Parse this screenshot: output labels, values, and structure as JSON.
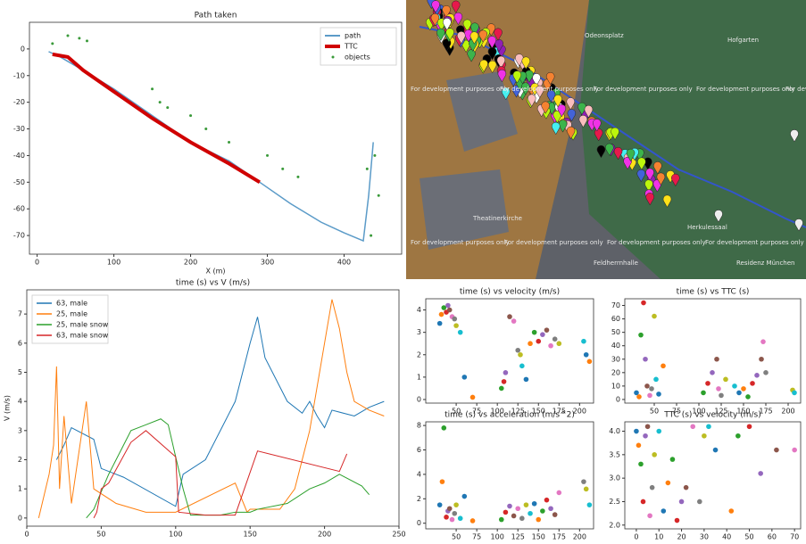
{
  "chart_data": [
    {
      "type": "line",
      "title": "Path taken",
      "x_label": "X (m)",
      "legend": "upper right",
      "xlim": [
        -10,
        475
      ],
      "xticks": [
        0,
        100,
        200,
        300,
        400
      ],
      "ylim": [
        -77,
        10
      ],
      "yticks": [
        0,
        -10,
        -20,
        -30,
        -40,
        -50,
        -60,
        -70
      ],
      "series": [
        {
          "name": "path",
          "color": "#5b9bc8",
          "mode": "line",
          "width": 1.5,
          "x": [
            15,
            30,
            60,
            100,
            150,
            200,
            250,
            290,
            330,
            370,
            400,
            425,
            432,
            438
          ],
          "values": [
            -1,
            -3,
            -8,
            -15,
            -25,
            -35,
            -42,
            -50,
            -58,
            -65,
            -69,
            -72,
            -55,
            -35
          ]
        },
        {
          "name": "TTC",
          "color": "#d00000",
          "mode": "line",
          "width": 4,
          "x": [
            20,
            40,
            60,
            100,
            150,
            200,
            250,
            290
          ],
          "values": [
            -2,
            -3,
            -8,
            -16,
            -26,
            -35,
            -43,
            -50
          ]
        },
        {
          "name": "objects",
          "color": "#3a9a3a",
          "mode": "scatter",
          "x": [
            20,
            40,
            55,
            65,
            150,
            160,
            170,
            200,
            220,
            250,
            300,
            320,
            340,
            430,
            440,
            445,
            435
          ],
          "values": [
            2,
            5,
            4,
            3,
            -15,
            -20,
            -22,
            -25,
            -30,
            -35,
            -40,
            -45,
            -48,
            -45,
            -40,
            -55,
            -70
          ]
        }
      ]
    },
    {
      "type": "line",
      "title": "time (s) vs V (m/s)",
      "y_label": "V (m/s)",
      "legend": "upper left",
      "xlim": [
        0,
        250
      ],
      "xticks": [
        0,
        50,
        100,
        150,
        200,
        250
      ],
      "ylim": [
        -0.28,
        7.83
      ],
      "yticks": [
        0,
        1,
        2,
        3,
        4,
        5,
        6,
        7
      ],
      "series": [
        {
          "name": "63, male",
          "color": "#1f77b4",
          "mode": "line",
          "width": 1,
          "x": [
            20,
            25,
            30,
            45,
            50,
            65,
            100,
            105,
            120,
            140,
            150,
            155,
            160,
            175,
            185,
            190,
            195,
            200,
            205,
            220,
            230,
            240
          ],
          "values": [
            2,
            2.5,
            3.1,
            2.7,
            1.7,
            1.4,
            0.4,
            1.5,
            2,
            4,
            6,
            6.9,
            5.5,
            4,
            3.6,
            4,
            3.5,
            3.1,
            3.7,
            3.5,
            3.8,
            4
          ]
        },
        {
          "name": "25, male",
          "color": "#ff7f0e",
          "mode": "line",
          "width": 1,
          "x": [
            8,
            15,
            18,
            20,
            22,
            25,
            30,
            40,
            45,
            60,
            80,
            100,
            140,
            148,
            150,
            170,
            180,
            190,
            200,
            205,
            210,
            215,
            220,
            230,
            240
          ],
          "values": [
            0,
            1.5,
            2.5,
            5.2,
            1,
            3.5,
            0.5,
            4,
            1,
            0.5,
            0.2,
            0.2,
            1.2,
            0.2,
            0.3,
            0.3,
            1,
            3,
            6,
            7.5,
            6.5,
            5,
            4,
            3.7,
            3.5
          ]
        },
        {
          "name": "25, male snow",
          "color": "#2ca02c",
          "mode": "line",
          "width": 1,
          "x": [
            40,
            45,
            55,
            65,
            70,
            80,
            90,
            95,
            105,
            110,
            130,
            140,
            150,
            155,
            175,
            190,
            200,
            210,
            225,
            230
          ],
          "values": [
            0,
            0.3,
            1.5,
            2.5,
            3,
            3.2,
            3.4,
            3.2,
            1,
            0.1,
            0.1,
            0.2,
            0.2,
            0.3,
            0.5,
            1,
            1.2,
            1.5,
            1.1,
            0.8
          ]
        },
        {
          "name": "63, male snow",
          "color": "#d62728",
          "mode": "line",
          "width": 1,
          "x": [
            45,
            47,
            50,
            55,
            70,
            80,
            100,
            102,
            120,
            140,
            155,
            210,
            215
          ],
          "values": [
            0,
            0.2,
            1,
            1.2,
            2.6,
            3,
            2.1,
            0.2,
            0.1,
            0.1,
            2.3,
            1.6,
            2.2
          ]
        }
      ]
    },
    {
      "type": "scatter",
      "title": "time (s) vs velocity (m/s)",
      "xlim": [
        13,
        217
      ],
      "xticks": [
        50,
        75,
        100,
        125,
        150,
        175,
        200
      ],
      "ylim": [
        -0.16,
        4.5
      ],
      "yticks": [
        0,
        1,
        2,
        3,
        4
      ],
      "point_colors": [
        "#1f77b4",
        "#ff7f0e",
        "#2ca02c",
        "#d62728",
        "#9467bd",
        "#8c564b",
        "#e377c2",
        "#7f7f7f",
        "#bcbd22",
        "#17becf"
      ],
      "x": [
        30,
        32,
        35,
        38,
        40,
        42,
        45,
        48,
        50,
        55,
        60,
        70,
        105,
        108,
        110,
        115,
        120,
        125,
        128,
        130,
        135,
        140,
        145,
        150,
        155,
        160,
        165,
        170,
        175,
        205,
        208,
        212
      ],
      "values": [
        3.4,
        3.8,
        4.1,
        3.9,
        4.2,
        4.0,
        3.7,
        3.6,
        3.3,
        3.0,
        1.0,
        0.1,
        0.5,
        0.8,
        1.2,
        3.7,
        3.5,
        2.2,
        2.0,
        1.5,
        0.9,
        2.5,
        3.0,
        2.6,
        2.9,
        3.1,
        2.4,
        2.7,
        2.5,
        2.6,
        2.0,
        1.7
      ]
    },
    {
      "type": "scatter",
      "title": "time (s) vs TTC (s)",
      "xlim": [
        17,
        214
      ],
      "xticks": [
        50,
        75,
        100,
        125,
        150,
        175,
        200
      ],
      "ylim": [
        -2.7,
        75
      ],
      "yticks": [
        0,
        10,
        20,
        30,
        40,
        50,
        60,
        70
      ],
      "point_colors": [
        "#1f77b4",
        "#ff7f0e",
        "#2ca02c",
        "#d62728",
        "#9467bd",
        "#8c564b",
        "#e377c2",
        "#7f7f7f",
        "#bcbd22",
        "#17becf"
      ],
      "x": [
        30,
        33,
        35,
        38,
        40,
        42,
        45,
        47,
        50,
        52,
        55,
        60,
        105,
        110,
        115,
        120,
        122,
        125,
        130,
        140,
        145,
        150,
        155,
        160,
        165,
        170,
        172,
        175,
        205,
        207
      ],
      "values": [
        5,
        2,
        48,
        72,
        30,
        10,
        3,
        8,
        62,
        15,
        4,
        25,
        5,
        12,
        20,
        30,
        8,
        3,
        15,
        10,
        5,
        8,
        2,
        12,
        18,
        30,
        43,
        20,
        7,
        5
      ]
    },
    {
      "type": "scatter",
      "title": "time (s) vs acceleration (m/s^2)",
      "xlim": [
        13,
        217
      ],
      "xticks": [
        50,
        75,
        100,
        125,
        150,
        175,
        200
      ],
      "ylim": [
        -0.46,
        8.3
      ],
      "yticks": [
        0,
        2,
        4,
        6,
        8
      ],
      "point_colors": [
        "#1f77b4",
        "#ff7f0e",
        "#2ca02c",
        "#d62728",
        "#9467bd",
        "#8c564b",
        "#e377c2",
        "#7f7f7f",
        "#bcbd22",
        "#17becf"
      ],
      "x": [
        30,
        33,
        35,
        38,
        40,
        42,
        45,
        48,
        50,
        55,
        60,
        70,
        105,
        110,
        115,
        120,
        125,
        130,
        135,
        140,
        145,
        150,
        155,
        160,
        165,
        170,
        175,
        205,
        208,
        212
      ],
      "values": [
        1.5,
        3.4,
        7.8,
        0.5,
        1.0,
        1.2,
        0.3,
        0.8,
        1.5,
        0.4,
        2.2,
        0.2,
        0.3,
        0.9,
        1.4,
        0.6,
        1.2,
        0.4,
        1.5,
        0.8,
        1.6,
        0.3,
        1.0,
        1.9,
        1.2,
        0.7,
        2.5,
        3.4,
        2.8,
        1.5
      ]
    },
    {
      "type": "scatter",
      "title": "TTC (s) vs velocity (m/s)",
      "xlim": [
        -5.1,
        72.7
      ],
      "xticks": [
        0,
        10,
        20,
        30,
        40,
        50,
        60,
        70
      ],
      "ylim": [
        1.92,
        4.2
      ],
      "yticks": [
        {
          "value": 2,
          "label": "2.0"
        },
        2.5,
        {
          "value": 3,
          "label": "3.0"
        },
        3.5,
        {
          "value": 4,
          "label": "4.0"
        }
      ],
      "point_colors": [
        "#1f77b4",
        "#ff7f0e",
        "#2ca02c",
        "#d62728",
        "#9467bd",
        "#8c564b",
        "#e377c2",
        "#7f7f7f",
        "#bcbd22",
        "#17becf"
      ],
      "x": [
        0,
        1,
        2,
        3,
        4,
        5,
        6,
        7,
        8,
        10,
        12,
        14,
        16,
        18,
        20,
        22,
        25,
        28,
        30,
        32,
        35,
        42,
        45,
        50,
        55,
        62,
        70
      ],
      "values": [
        4.0,
        3.7,
        3.3,
        2.5,
        3.9,
        4.1,
        2.2,
        2.8,
        3.5,
        4.0,
        2.3,
        2.9,
        3.4,
        2.1,
        2.5,
        2.8,
        4.1,
        2.5,
        3.9,
        4.1,
        3.6,
        2.3,
        3.9,
        4.1,
        3.1,
        3.6,
        3.6
      ]
    }
  ],
  "map": {
    "labels": [
      "Odeonsplatz",
      "For development purposes only",
      "Hofgarten",
      "Theatinerkirche",
      "Feldherrnhalle",
      "Herkulessaal",
      "Residenz München"
    ]
  }
}
